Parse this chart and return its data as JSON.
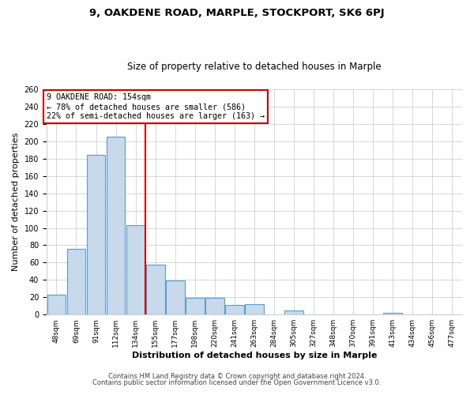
{
  "title_line1": "9, OAKDENE ROAD, MARPLE, STOCKPORT, SK6 6PJ",
  "title_line2": "Size of property relative to detached houses in Marple",
  "xlabel": "Distribution of detached houses by size in Marple",
  "ylabel": "Number of detached properties",
  "bin_labels": [
    "48sqm",
    "69sqm",
    "91sqm",
    "112sqm",
    "134sqm",
    "155sqm",
    "177sqm",
    "198sqm",
    "220sqm",
    "241sqm",
    "263sqm",
    "284sqm",
    "305sqm",
    "327sqm",
    "348sqm",
    "370sqm",
    "391sqm",
    "413sqm",
    "434sqm",
    "456sqm",
    "477sqm"
  ],
  "bar_values": [
    23,
    76,
    184,
    205,
    103,
    58,
    39,
    19,
    19,
    11,
    12,
    0,
    5,
    0,
    0,
    0,
    0,
    2,
    0,
    0,
    0
  ],
  "bar_color_fill": "#c8d9eb",
  "bar_color_edge": "#5a9ec9",
  "vline_x_index": 4.5,
  "vline_color": "#cc0000",
  "annotation_line1": "9 OAKDENE ROAD: 154sqm",
  "annotation_line2": "← 78% of detached houses are smaller (586)",
  "annotation_line3": "22% of semi-detached houses are larger (163) →",
  "annotation_box_color": "#cc0000",
  "annotation_box_bg": "#ffffff",
  "ylim": [
    0,
    260
  ],
  "yticks": [
    0,
    20,
    40,
    60,
    80,
    100,
    120,
    140,
    160,
    180,
    200,
    220,
    240,
    260
  ],
  "footer_line1": "Contains HM Land Registry data © Crown copyright and database right 2024.",
  "footer_line2": "Contains public sector information licensed under the Open Government Licence v3.0.",
  "background_color": "#ffffff",
  "grid_color": "#d0d0d0"
}
